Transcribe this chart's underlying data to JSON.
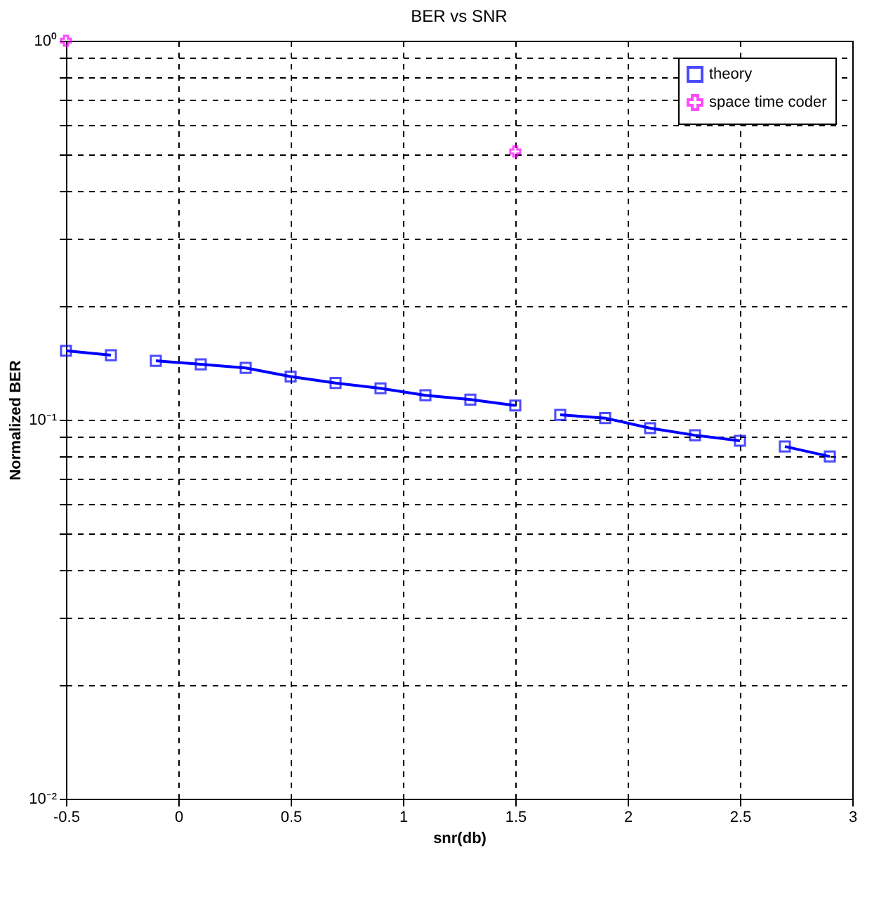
{
  "chart_data": {
    "type": "line",
    "title": "BER vs SNR",
    "xlabel": "snr(db)",
    "ylabel": "Normalized BER",
    "x": [
      -0.5,
      -0.3,
      -0.2,
      -0.1,
      0.1,
      0.3,
      0.5,
      0.7,
      0.9,
      1.1,
      1.3,
      1.5,
      1.6,
      1.7,
      1.9,
      2.1,
      2.3,
      2.5,
      2.6,
      2.7,
      2.9
    ],
    "series": [
      {
        "name": "theory",
        "color": "#0000ff",
        "marker": "square",
        "values": [
          0.152,
          0.148,
          null,
          0.143,
          0.14,
          0.137,
          0.13,
          0.125,
          0.121,
          0.116,
          0.113,
          0.109,
          null,
          0.103,
          0.101,
          0.095,
          0.091,
          0.088,
          null,
          0.085,
          0.08
        ]
      },
      {
        "name": "space time coder",
        "color": "#ff00ff",
        "type": "scatter",
        "marker": "cross",
        "x": [
          -0.5,
          1.5
        ],
        "values": [
          1.0,
          0.51
        ]
      }
    ],
    "log": "y",
    "xlim": [
      -0.5,
      3
    ],
    "xticks": [
      -0.5,
      0,
      0.5,
      1,
      1.5,
      2,
      2.5,
      3
    ],
    "ylim": [
      0.01,
      1
    ],
    "yticks": [
      {
        "value": 0.01,
        "label": "10⁻²"
      },
      {
        "value": 0.02,
        "label": null
      },
      {
        "value": 0.03,
        "label": null
      },
      {
        "value": 0.04,
        "label": null
      },
      {
        "value": 0.05,
        "label": null
      },
      {
        "value": 0.06,
        "label": null
      },
      {
        "value": 0.07,
        "label": null
      },
      {
        "value": 0.08,
        "label": null
      },
      {
        "value": 0.09,
        "label": null
      },
      {
        "value": 0.1,
        "label": "10⁻¹"
      },
      {
        "value": 0.2,
        "label": null
      },
      {
        "value": 0.3,
        "label": null
      },
      {
        "value": 0.4,
        "label": null
      },
      {
        "value": 0.5,
        "label": null
      },
      {
        "value": 0.6,
        "label": null
      },
      {
        "value": 0.7,
        "label": null
      },
      {
        "value": 0.8,
        "label": null
      },
      {
        "value": 0.9,
        "label": null
      },
      {
        "value": 1,
        "label": "10⁰"
      }
    ],
    "grid": true,
    "legend": "top right"
  }
}
